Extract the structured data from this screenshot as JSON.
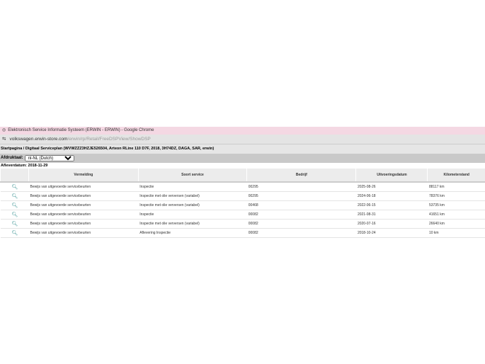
{
  "window": {
    "title": "Elektronisch Service Informatie Systeem (ERWIN - ERWIN) - Google Chrome",
    "url_host": "volkswagen.erwin-store.com",
    "url_path": "/erwin/rp/Retail/FreeDSPView/ShowDSP"
  },
  "breadcrumb": "Startpagina / Digitaal Serviceplan (WVWZZZ3HZJE526504, Arteon RLine 110 D7F, 2018, 3H74DZ, DAGA, SAR, erwin)",
  "language": {
    "label": "Afdruktaal:",
    "selected": "nl-NL (Dutch)"
  },
  "delivery_date": "Afleverdatum: 2018-11-29",
  "table": {
    "headers": [
      "",
      "Vermelding",
      "Soort service",
      "Bedrijf",
      "Uitvoeringsdatum",
      "Kilometerstand"
    ],
    "rows": [
      [
        "Bewijs van uitgevoerde servicebeurten",
        "Inspectie",
        "00295",
        "2025-08-26",
        "88117 km"
      ],
      [
        "Bewijs van uitgevoerde servicebeurten",
        "Inspectie met olie verversen (variabel)",
        "00295",
        "2024-06-18",
        "78376 km"
      ],
      [
        "Bewijs van uitgevoerde servicebeurten",
        "Inspectie met olie verversen (variabel)",
        "00468",
        "2022-06-15",
        "53735 km"
      ],
      [
        "Bewijs van uitgevoerde servicebeurten",
        "Inspectie",
        "00082",
        "2021-08-31",
        "41651 km"
      ],
      [
        "Bewijs van uitgevoerde servicebeurten",
        "Inspectie met olie verversen (variabel)",
        "00082",
        "2020-07-16",
        "26640 km"
      ],
      [
        "Bewijs van uitgevoerde servicebeurten",
        "Aflevering Inspectie",
        "00082",
        "2018-10-24",
        "10 km"
      ]
    ]
  }
}
